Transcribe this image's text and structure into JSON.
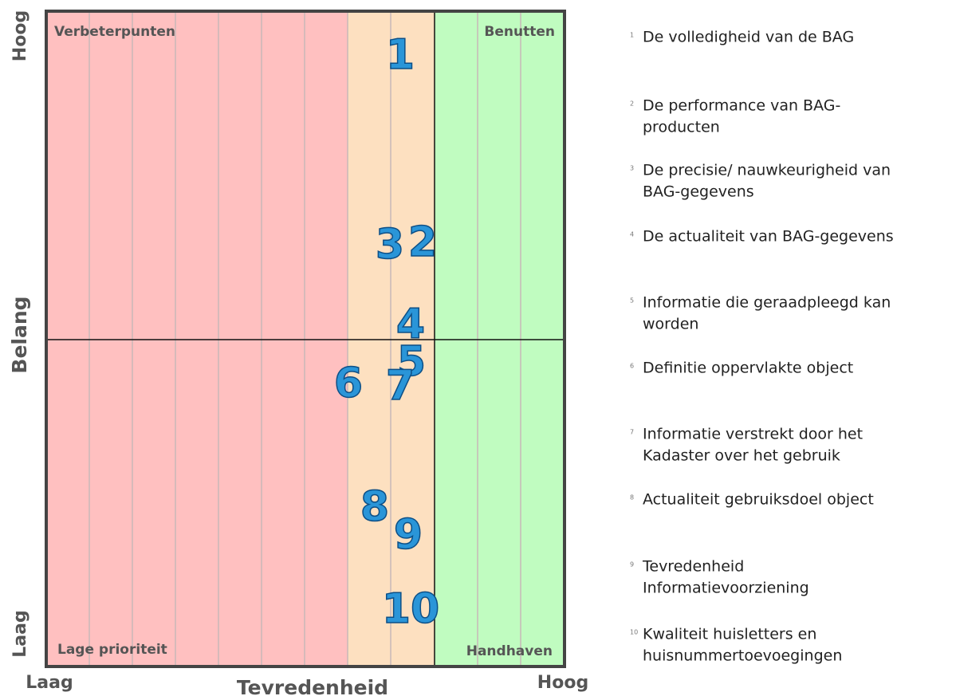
{
  "quadrants": {
    "top_left": "Verbeterpunten",
    "top_right": "Benutten",
    "bottom_left": "Lage prioriteit",
    "bottom_right": "Handhaven"
  },
  "y_axis": {
    "high": "Hoog",
    "title": "Belang",
    "low": "Laag"
  },
  "x_axis": {
    "low": "Laag",
    "title": "Tevredenheid",
    "high": "Hoog"
  },
  "items": [
    {
      "number": "1",
      "lines": [
        "De volledigheid van de BAG"
      ]
    },
    {
      "number": "2",
      "lines": [
        "De performance van BAG-",
        "producten"
      ]
    },
    {
      "number": "3",
      "lines": [
        "De precisie/ nauwkeurigheid van",
        "BAG-gegevens"
      ]
    },
    {
      "number": "4",
      "lines": [
        "De actualiteit van BAG-gegevens"
      ]
    },
    {
      "number": "5",
      "lines": [
        "Informatie die geraadpleegd kan",
        "worden"
      ]
    },
    {
      "number": "6",
      "lines": [
        "Definitie oppervlakte object"
      ]
    },
    {
      "number": "7",
      "lines": [
        "Informatie verstrekt door het",
        "Kadaster over het gebruik"
      ]
    },
    {
      "number": "8",
      "lines": [
        "Actualiteit gebruiksdoel object"
      ]
    },
    {
      "number": "9",
      "lines": [
        "Tevredenheid",
        "Informatievoorziening"
      ]
    },
    {
      "number": "10",
      "lines": [
        "Kwaliteit huisletters en",
        "huisnummertoevoegingen"
      ]
    }
  ]
}
